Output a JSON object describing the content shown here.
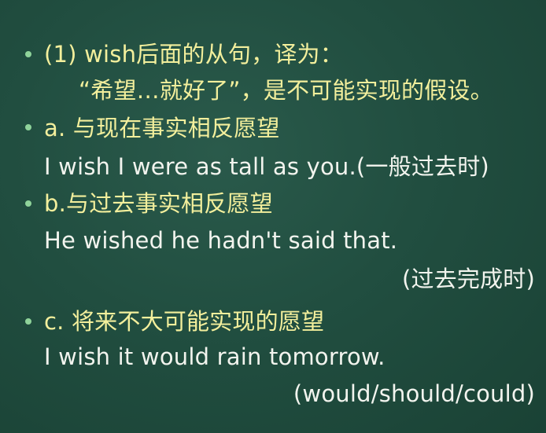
{
  "lines": {
    "l1": "(1) wish后面的从句，译为：",
    "l2": "“希望…就好了”，是不可能实现的假设。",
    "l3": "a. 与现在事实相反愿望",
    "l4": "I wish I were as tall as you.(一般过去时)",
    "l5": "b.与过去事实相反愿望",
    "l6": "He wished he hadn't said that.",
    "l7": "(过去完成时)",
    "l8": "c. 将来不大可能实现的愿望",
    "l9": "I wish it would rain tomorrow.",
    "l10": "(would/should/could)"
  },
  "colors": {
    "board": "#1f4a3d",
    "yellow_text": "#f3ef9c",
    "white_text": "#f2f4ee",
    "bullet": "#8fd39a"
  }
}
